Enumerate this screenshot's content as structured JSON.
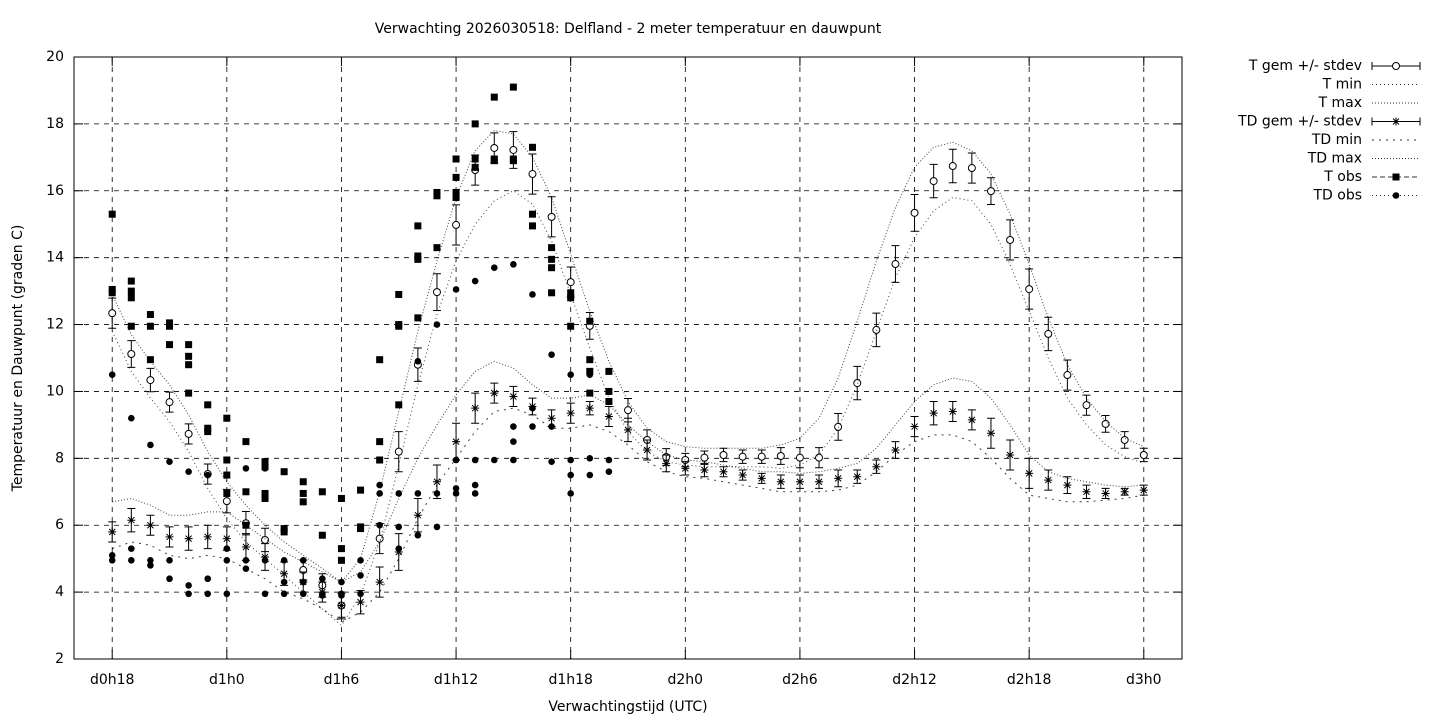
{
  "chart_data": {
    "type": "line",
    "title": "Verwachting 2026030518: Delfland - 2 meter temperatuur en dauwpunt",
    "xlabel": "Verwachtingstijd (UTC)",
    "ylabel": "Temperatuur en Dauwpunt (graden C)",
    "xlim": [
      16,
      74
    ],
    "ylim": [
      2,
      20
    ],
    "xticks": [
      {
        "value": 18,
        "label": "d0h18"
      },
      {
        "value": 24,
        "label": "d1h0"
      },
      {
        "value": 30,
        "label": "d1h6"
      },
      {
        "value": 36,
        "label": "d1h12"
      },
      {
        "value": 42,
        "label": "d1h18"
      },
      {
        "value": 48,
        "label": "d2h0"
      },
      {
        "value": 54,
        "label": "d2h6"
      },
      {
        "value": 60,
        "label": "d2h12"
      },
      {
        "value": 66,
        "label": "d2h18"
      },
      {
        "value": 72,
        "label": "d3h0"
      }
    ],
    "yticks": [
      2,
      4,
      6,
      8,
      10,
      12,
      14,
      16,
      18,
      20
    ],
    "grid": true,
    "legend": "outside-top-right",
    "x": [
      18,
      19,
      20,
      21,
      22,
      23,
      24,
      25,
      26,
      27,
      28,
      29,
      30,
      31,
      32,
      33,
      34,
      35,
      36,
      37,
      38,
      39,
      40,
      41,
      42,
      43,
      44,
      45,
      46,
      47,
      48,
      49,
      50,
      51,
      52,
      53,
      54,
      55,
      56,
      57,
      58,
      59,
      60,
      61,
      62,
      63,
      64,
      65,
      66,
      67,
      68,
      69,
      70,
      71,
      72
    ],
    "series": [
      {
        "name": "T gem +/- stdev",
        "color": "#000000",
        "style": "errorbar",
        "marker": "circle",
        "values": [
          12.34,
          11.12,
          10.34,
          9.68,
          8.73,
          7.53,
          6.72,
          6.06,
          5.56,
          null,
          4.66,
          4.2,
          3.6,
          null,
          5.6,
          8.2,
          10.8,
          12.97,
          14.98,
          16.62,
          17.28,
          17.22,
          16.5,
          15.22,
          13.27,
          11.96,
          null,
          9.44,
          8.55,
          8.04,
          7.95,
          8.02,
          8.1,
          8.05,
          8.05,
          8.07,
          8.02,
          8.02,
          8.94,
          10.25,
          11.84,
          13.81,
          15.34,
          16.29,
          16.74,
          16.68,
          15.99,
          14.53,
          13.06,
          11.72,
          10.49,
          9.59,
          9.03,
          8.55,
          8.1
        ],
        "errors": [
          0.45,
          0.4,
          0.35,
          0.3,
          0.3,
          0.3,
          0.35,
          0.35,
          0.35,
          null,
          0.3,
          0.35,
          0.4,
          null,
          0.45,
          0.6,
          0.5,
          0.55,
          0.6,
          0.45,
          0.45,
          0.55,
          0.6,
          0.6,
          0.45,
          0.4,
          null,
          0.35,
          0.3,
          0.25,
          0.2,
          0.2,
          0.2,
          0.2,
          0.2,
          0.25,
          0.3,
          0.3,
          0.4,
          0.5,
          0.5,
          0.55,
          0.55,
          0.5,
          0.5,
          0.45,
          0.4,
          0.6,
          0.6,
          0.5,
          0.45,
          0.3,
          0.25,
          0.25,
          0.2
        ]
      },
      {
        "name": "T min",
        "color": "#000000",
        "style": "dotted",
        "dash": [
          1,
          3
        ],
        "values": [
          11.8,
          10.6,
          9.8,
          9.1,
          8.2,
          7.1,
          6.2,
          5.5,
          5.0,
          4.5,
          4.0,
          3.5,
          3.0,
          3.9,
          5.5,
          7.8,
          10.2,
          12.3,
          13.9,
          15.0,
          15.7,
          16.0,
          15.6,
          14.5,
          12.9,
          11.3,
          9.8,
          8.8,
          8.2,
          7.9,
          7.8,
          7.75,
          7.75,
          7.75,
          7.75,
          7.7,
          7.8,
          8.1,
          8.9,
          10.2,
          11.8,
          13.4,
          14.6,
          15.4,
          15.8,
          15.7,
          15.0,
          13.8,
          12.4,
          11.0,
          9.8,
          9.0,
          8.4,
          8.05,
          7.85
        ]
      },
      {
        "name": "T max",
        "color": "#000000",
        "style": "dotted",
        "dash": [
          1,
          2
        ],
        "values": [
          12.9,
          11.7,
          10.9,
          10.2,
          9.3,
          8.2,
          7.3,
          6.6,
          6.0,
          5.5,
          5.1,
          4.7,
          4.3,
          5.0,
          7.0,
          9.4,
          11.8,
          13.9,
          15.8,
          17.2,
          17.8,
          17.7,
          17.0,
          15.8,
          14.1,
          12.4,
          10.9,
          9.7,
          8.9,
          8.5,
          8.35,
          8.3,
          8.3,
          8.3,
          8.3,
          8.4,
          8.6,
          9.2,
          10.4,
          12.1,
          13.9,
          15.5,
          16.7,
          17.3,
          17.45,
          17.2,
          16.5,
          15.3,
          13.8,
          12.2,
          10.8,
          9.8,
          9.1,
          8.6,
          8.35
        ]
      },
      {
        "name": "TD gem +/- stdev",
        "color": "#000000",
        "style": "errorbar",
        "marker": "star",
        "values": [
          5.8,
          6.15,
          6.0,
          5.65,
          5.6,
          5.65,
          5.6,
          5.35,
          5.05,
          4.55,
          4.3,
          4.0,
          3.6,
          3.7,
          4.3,
          5.2,
          6.3,
          7.3,
          8.5,
          9.5,
          9.95,
          9.85,
          9.55,
          9.2,
          9.35,
          9.5,
          9.25,
          8.85,
          8.25,
          7.85,
          7.7,
          7.65,
          7.6,
          7.5,
          7.4,
          7.3,
          7.3,
          7.3,
          7.4,
          7.45,
          7.75,
          8.25,
          8.95,
          9.35,
          9.4,
          9.15,
          8.75,
          8.1,
          7.55,
          7.35,
          7.2,
          7.0,
          6.95,
          7.0,
          7.05
        ],
        "errors": [
          0.3,
          0.35,
          0.3,
          0.3,
          0.35,
          0.35,
          0.35,
          0.4,
          0.4,
          0.35,
          0.3,
          0.3,
          0.35,
          0.35,
          0.45,
          0.55,
          0.5,
          0.5,
          0.55,
          0.45,
          0.3,
          0.3,
          0.25,
          0.25,
          0.3,
          0.2,
          0.3,
          0.35,
          0.3,
          0.25,
          0.2,
          0.2,
          0.15,
          0.15,
          0.15,
          0.2,
          0.2,
          0.2,
          0.25,
          0.2,
          0.2,
          0.25,
          0.3,
          0.35,
          0.3,
          0.3,
          0.45,
          0.45,
          0.45,
          0.3,
          0.25,
          0.2,
          0.15,
          0.1,
          0.15
        ]
      },
      {
        "name": "TD min",
        "color": "#000000",
        "style": "dotted",
        "dash": [
          2,
          5
        ],
        "values": [
          5.3,
          5.5,
          5.4,
          5.1,
          5.0,
          5.1,
          5.0,
          4.7,
          4.4,
          4.0,
          3.8,
          3.5,
          3.1,
          3.4,
          4.0,
          5.0,
          6.2,
          7.2,
          8.0,
          8.8,
          9.4,
          9.5,
          9.3,
          8.9,
          8.9,
          9.0,
          8.8,
          8.4,
          7.9,
          7.6,
          7.45,
          7.4,
          7.3,
          7.2,
          7.1,
          7.0,
          7.0,
          7.0,
          7.05,
          7.2,
          7.6,
          8.1,
          8.5,
          8.7,
          8.7,
          8.5,
          8.0,
          7.4,
          6.9,
          6.8,
          6.7,
          6.7,
          6.75,
          6.8,
          6.9
        ]
      },
      {
        "name": "TD max",
        "color": "#000000",
        "style": "dotted",
        "dash": [
          1,
          2
        ],
        "values": [
          6.7,
          6.8,
          6.6,
          6.3,
          6.3,
          6.4,
          6.4,
          6.0,
          5.6,
          5.2,
          4.9,
          4.6,
          4.3,
          4.6,
          5.5,
          6.8,
          8.0,
          9.0,
          9.9,
          10.6,
          10.9,
          10.7,
          10.2,
          9.8,
          9.8,
          9.9,
          9.6,
          9.0,
          8.5,
          8.1,
          7.95,
          7.9,
          7.8,
          7.7,
          7.6,
          7.6,
          7.55,
          7.6,
          7.7,
          7.85,
          8.3,
          9.0,
          9.7,
          10.2,
          10.4,
          10.3,
          9.8,
          9.0,
          8.1,
          7.6,
          7.4,
          7.3,
          7.2,
          7.15,
          7.2
        ]
      },
      {
        "name": "T obs",
        "color": "#000000",
        "style": "points",
        "marker": "square",
        "dash": [
          5,
          3
        ],
        "x": [
          18,
          18,
          18,
          19,
          19,
          19,
          19,
          20,
          20,
          20,
          21,
          21,
          21,
          22,
          22,
          22,
          22,
          23,
          23,
          23,
          24,
          24,
          24,
          24,
          25,
          25,
          25,
          26,
          26,
          26,
          26,
          27,
          27,
          27,
          28,
          28,
          28,
          29,
          29,
          30,
          30,
          30,
          31,
          31,
          31,
          32,
          32,
          32,
          33,
          33,
          33,
          33,
          34,
          34,
          34,
          34,
          35,
          35,
          35,
          36,
          36,
          36,
          36,
          37,
          37,
          37,
          38,
          38,
          38,
          39,
          39,
          39,
          40,
          40,
          40,
          41,
          41,
          41,
          41,
          42,
          42,
          42,
          43,
          43,
          43,
          43,
          44,
          44,
          44
        ],
        "values": [
          15.3,
          13.05,
          12.95,
          13.3,
          13.0,
          12.8,
          11.95,
          12.3,
          11.95,
          10.95,
          12.05,
          11.95,
          11.4,
          11.4,
          11.05,
          10.8,
          9.95,
          9.6,
          8.9,
          8.8,
          9.2,
          7.95,
          7.5,
          6.95,
          8.5,
          7.0,
          6.0,
          7.9,
          7.75,
          6.95,
          6.8,
          7.6,
          5.9,
          5.8,
          7.3,
          6.95,
          6.7,
          7.0,
          5.7,
          6.8,
          5.3,
          4.95,
          7.05,
          5.95,
          5.9,
          10.95,
          8.5,
          7.95,
          12.9,
          12.0,
          11.95,
          9.6,
          14.95,
          14.05,
          13.95,
          12.2,
          15.95,
          15.85,
          14.3,
          16.95,
          16.4,
          15.95,
          15.8,
          18.0,
          16.95,
          16.7,
          18.8,
          16.95,
          16.9,
          19.1,
          16.95,
          16.9,
          17.3,
          15.3,
          14.95,
          14.3,
          13.95,
          13.7,
          12.95,
          12.95,
          12.8,
          11.95,
          12.1,
          10.95,
          10.6,
          9.95,
          10.6,
          10.0,
          9.7
        ]
      },
      {
        "name": "TD obs",
        "color": "#000000",
        "style": "points",
        "marker": "dot",
        "dash": [
          1,
          3
        ],
        "x": [
          18,
          18,
          18,
          19,
          19,
          19,
          20,
          20,
          20,
          21,
          21,
          21,
          22,
          22,
          22,
          23,
          23,
          23,
          24,
          24,
          24,
          25,
          25,
          25,
          26,
          26,
          26,
          27,
          27,
          27,
          28,
          28,
          28,
          29,
          29,
          29,
          30,
          30,
          30,
          31,
          31,
          31,
          32,
          32,
          32,
          33,
          33,
          33,
          34,
          34,
          34,
          35,
          35,
          35,
          36,
          36,
          36,
          36,
          37,
          37,
          37,
          37,
          38,
          38,
          39,
          39,
          39,
          39,
          40,
          40,
          40,
          41,
          41,
          41,
          42,
          42,
          42,
          42,
          43,
          43,
          43,
          44,
          44
        ],
        "values": [
          10.5,
          5.1,
          4.95,
          9.2,
          5.3,
          4.95,
          8.4,
          4.95,
          4.8,
          7.9,
          4.95,
          4.4,
          7.6,
          4.2,
          3.95,
          7.5,
          4.4,
          3.95,
          5.3,
          4.95,
          3.95,
          7.7,
          4.95,
          4.7,
          7.7,
          4.95,
          3.95,
          4.95,
          4.3,
          3.95,
          4.95,
          4.3,
          3.95,
          4.4,
          3.95,
          3.9,
          4.3,
          3.95,
          3.9,
          4.95,
          4.5,
          3.95,
          7.2,
          6.95,
          6.0,
          6.95,
          5.95,
          5.3,
          10.9,
          6.95,
          5.7,
          12.0,
          6.95,
          5.95,
          13.05,
          7.95,
          6.95,
          7.1,
          13.3,
          7.95,
          7.2,
          6.95,
          13.7,
          7.95,
          13.8,
          8.95,
          8.5,
          7.95,
          12.9,
          9.5,
          8.95,
          11.1,
          8.95,
          7.9,
          10.5,
          7.95,
          7.5,
          6.95,
          10.5,
          8.0,
          7.5,
          7.95,
          7.6
        ]
      }
    ]
  }
}
